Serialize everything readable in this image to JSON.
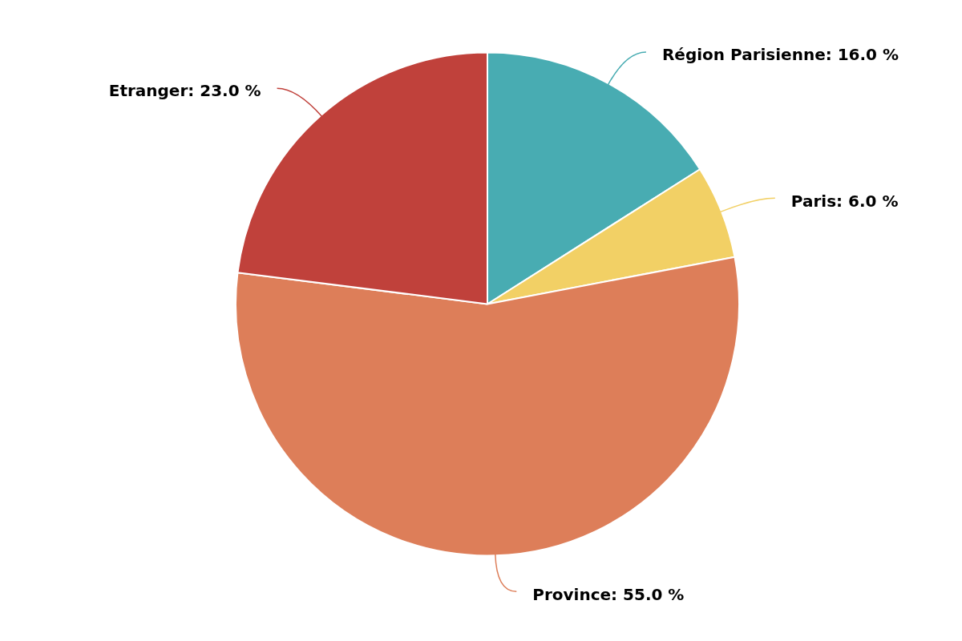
{
  "chart_data": {
    "type": "pie",
    "categories": [
      "Région Parisienne",
      "Paris",
      "Province",
      "Etranger"
    ],
    "values": [
      16,
      6,
      55,
      23
    ],
    "value_labels": [
      "16.0 %",
      "6.0 %",
      "55.0 %",
      "23.0 %"
    ],
    "colors": [
      "#48acb2",
      "#f2d065",
      "#dd7e59",
      "#c0413b"
    ],
    "legend": false
  }
}
